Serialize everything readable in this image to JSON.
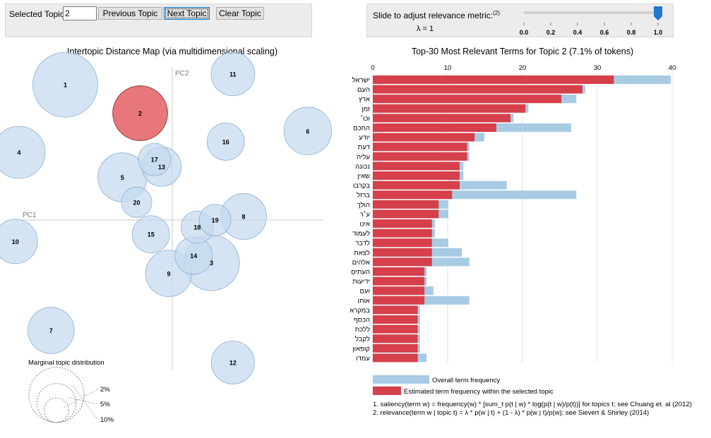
{
  "controls": {
    "selected_topic_label": "Selected Topic:",
    "selected_topic_value": "2",
    "prev_label": "Previous Topic",
    "next_label": "Next Topic",
    "clear_label": "Clear Topic"
  },
  "slider": {
    "label": "Slide to adjust relevance metric:",
    "label_ref": "(2)",
    "lambda_text": "λ = 1",
    "value": 1.0,
    "ticks": [
      "0.0",
      "0.2",
      "0.4",
      "0.6",
      "0.8",
      "1.0"
    ]
  },
  "map": {
    "title": "Intertopic Distance Map (via multidimensional scaling)",
    "pc1_label": "PC1",
    "pc2_label": "PC2",
    "selected_topic": 2,
    "marginal_title": "Marginal topic distribution",
    "marginal_legend": [
      "2%",
      "5%",
      "10%"
    ]
  },
  "chart_data": [
    {
      "type": "scatter",
      "title": "Intertopic Distance Map (via multidimensional scaling)",
      "xlabel": "PC1",
      "ylabel": "PC2",
      "grid": false,
      "points": [
        {
          "topic": 1,
          "x": -0.3,
          "y": 0.38,
          "size": 10
        },
        {
          "topic": 2,
          "x": -0.09,
          "y": 0.3,
          "size": 7.1
        },
        {
          "topic": 3,
          "x": 0.11,
          "y": -0.12,
          "size": 7.4
        },
        {
          "topic": 4,
          "x": -0.43,
          "y": 0.19,
          "size": 6.5
        },
        {
          "topic": 5,
          "x": -0.14,
          "y": 0.12,
          "size": 5.7
        },
        {
          "topic": 6,
          "x": 0.38,
          "y": 0.25,
          "size": 5.4
        },
        {
          "topic": 7,
          "x": -0.34,
          "y": -0.31,
          "size": 5.1
        },
        {
          "topic": 8,
          "x": 0.2,
          "y": 0.01,
          "size": 5.0
        },
        {
          "topic": 9,
          "x": -0.01,
          "y": -0.15,
          "size": 5.1
        },
        {
          "topic": 10,
          "x": -0.44,
          "y": -0.06,
          "size": 4.7
        },
        {
          "topic": 11,
          "x": 0.17,
          "y": 0.41,
          "size": 4.5
        },
        {
          "topic": 12,
          "x": 0.17,
          "y": -0.4,
          "size": 4.4
        },
        {
          "topic": 13,
          "x": -0.03,
          "y": 0.15,
          "size": 3.7
        },
        {
          "topic": 14,
          "x": 0.06,
          "y": -0.1,
          "size": 3.3
        },
        {
          "topic": 15,
          "x": -0.06,
          "y": -0.04,
          "size": 3.3
        },
        {
          "topic": 16,
          "x": 0.15,
          "y": 0.22,
          "size": 3.3
        },
        {
          "topic": 17,
          "x": -0.05,
          "y": 0.17,
          "size": 2.5
        },
        {
          "topic": 18,
          "x": 0.07,
          "y": -0.02,
          "size": 2.5
        },
        {
          "topic": 19,
          "x": 0.12,
          "y": 0.0,
          "size": 2.4
        },
        {
          "topic": 20,
          "x": -0.1,
          "y": 0.05,
          "size": 2.2
        }
      ]
    },
    {
      "type": "bar",
      "title": "Top-30 Most Relevant Terms for Topic 2 (7.1% of tokens)",
      "xlim": [
        0,
        40
      ],
      "xticks": [
        0,
        10,
        20,
        30,
        40
      ],
      "legend": [
        "Overall term frequency",
        "Estimated term frequency within the selected topic"
      ],
      "terms": [
        "ישראל",
        "העם",
        "ארץ",
        "זמן",
        "וכו׳",
        "החכם",
        "יודע",
        "דעת",
        "עליה",
        "נכונה",
        "שאין",
        "בקרבו",
        "ברזל",
        "הולך",
        "ע׳ר",
        "אינו",
        "לעמוד",
        "לדבר",
        "לצאת",
        "אלהים",
        "העתים",
        "ידיעות",
        "ועם",
        "אותו",
        "במקרא",
        "הכסף",
        "ללכת",
        "לקבל",
        "קופאון",
        "עמדו"
      ],
      "series": [
        {
          "name": "Overall term frequency",
          "values": [
            39.8,
            28.4,
            27.2,
            20.8,
            18.8,
            26.5,
            14.9,
            12.9,
            12.9,
            12.1,
            12.1,
            17.9,
            27.2,
            10.1,
            10.1,
            8.3,
            8.3,
            10.1,
            11.9,
            12.9,
            7.2,
            7.2,
            8.1,
            12.9,
            6.3,
            6.3,
            6.3,
            6.3,
            6.3,
            7.2
          ]
        },
        {
          "name": "Estimated term frequency within the selected topic",
          "values": [
            32.2,
            28.0,
            25.2,
            20.4,
            18.4,
            16.5,
            13.6,
            12.6,
            12.6,
            11.6,
            11.6,
            11.6,
            10.6,
            8.8,
            8.8,
            7.9,
            7.9,
            7.9,
            7.9,
            7.9,
            6.9,
            6.9,
            6.9,
            6.9,
            6.0,
            6.0,
            6.0,
            6.0,
            6.0,
            6.0
          ]
        }
      ]
    }
  ],
  "notes": [
    "1. saliency(term w) = frequency(w) * [sum_t p(t | w) * log(p(t | w)/p(t))] for topics t; see Chuang et. al (2012)",
    "2. relevance(term w | topic t) = λ * p(w | t) + (1 - λ) * p(w | t)/p(w); see Sievert & Shirley (2014)"
  ],
  "colors": {
    "circle_fill": "#c6dbef",
    "circle_stroke": "#8fb0cf",
    "selected_fill": "#e8777b",
    "selected_stroke": "#a04a4d",
    "bar_overall": "#a8cbe4",
    "bar_topic": "#d5404b",
    "slider_handle": "#1f77d0"
  }
}
